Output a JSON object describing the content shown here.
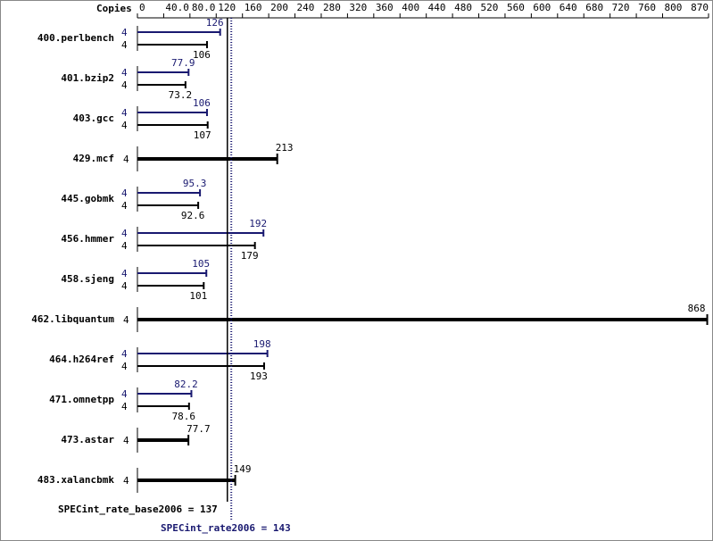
{
  "chart_data": {
    "type": "bar",
    "orientation": "horizontal",
    "copies_label": "Copies",
    "categories": [
      "400.perlbench",
      "401.bzip2",
      "403.gcc",
      "429.mcf",
      "445.gobmk",
      "456.hmmer",
      "458.sjeng",
      "462.libquantum",
      "464.h264ref",
      "471.omnetpp",
      "473.astar",
      "483.xalancbmk"
    ],
    "series": [
      {
        "color": "#191970",
        "copies": [
          4,
          4,
          4,
          null,
          4,
          4,
          4,
          null,
          4,
          4,
          null,
          null
        ],
        "values": [
          126,
          77.9,
          106,
          null,
          95.3,
          192,
          105,
          null,
          198,
          82.2,
          null,
          null
        ]
      },
      {
        "color": "#000000",
        "copies": [
          4,
          4,
          4,
          4,
          4,
          4,
          4,
          4,
          4,
          4,
          4,
          4
        ],
        "values": [
          106,
          73.2,
          107,
          213,
          92.6,
          179,
          101,
          868,
          193,
          78.6,
          77.7,
          149
        ]
      }
    ],
    "xlim": [
      0,
      870
    ],
    "xticks": [
      0,
      {
        "value": 40,
        "label": "40.0"
      },
      {
        "value": 80,
        "label": "80.0"
      },
      120,
      160,
      200,
      240,
      280,
      320,
      360,
      400,
      440,
      480,
      520,
      560,
      600,
      640,
      680,
      720,
      760,
      800,
      870
    ],
    "reference_lines": [
      {
        "label": "SPECint_rate_base2006 = 137",
        "value": 137,
        "color": "#000000",
        "dotted": false
      },
      {
        "label": "SPECint_rate2006 = 143",
        "value": 143,
        "color": "#191970",
        "dotted": true
      }
    ]
  }
}
